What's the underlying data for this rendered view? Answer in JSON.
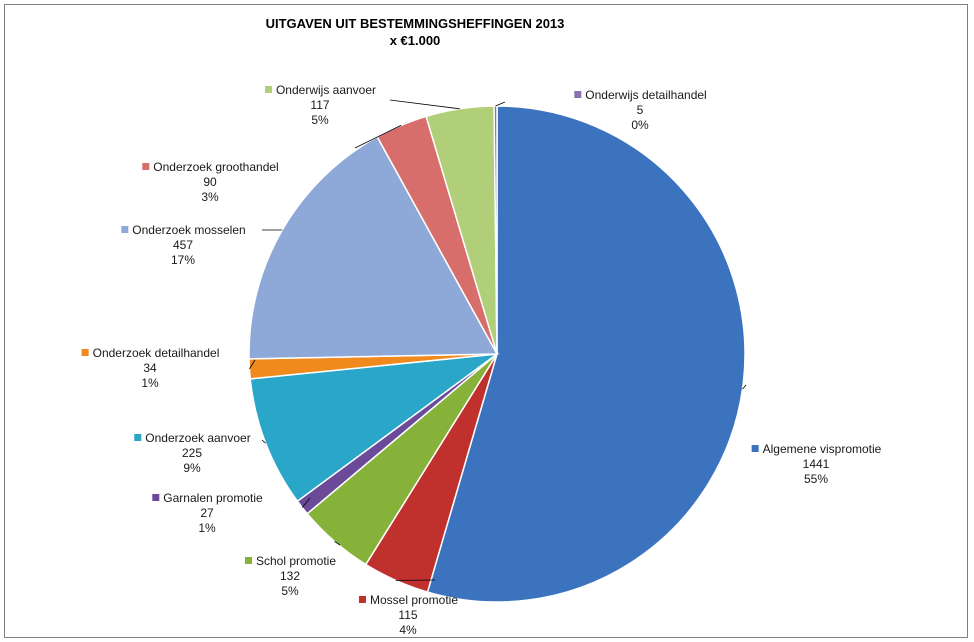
{
  "chart_data": {
    "type": "pie",
    "title": "UITGAVEN UIT BESTEMMINGSHEFFINGEN 2013",
    "subtitle": "x €1.000",
    "slices": [
      {
        "name": "Algemene vispromotie",
        "value": 1441,
        "percent": "55%",
        "color": "#3c73bf"
      },
      {
        "name": "Mossel promotie",
        "value": 115,
        "percent": "4%",
        "color": "#c0312d"
      },
      {
        "name": "Schol promotie",
        "value": 132,
        "percent": "5%",
        "color": "#86b23a"
      },
      {
        "name": "Garnalen promotie",
        "value": 27,
        "percent": "1%",
        "color": "#6b4a9a"
      },
      {
        "name": "Onderzoek aanvoer",
        "value": 225,
        "percent": "9%",
        "color": "#2aa6c8"
      },
      {
        "name": "Onderzoek detailhandel",
        "value": 34,
        "percent": "1%",
        "color": "#f08a1e"
      },
      {
        "name": "Onderzoek mosselen",
        "value": 457,
        "percent": "17%",
        "color": "#8ea8d8"
      },
      {
        "name": "Onderzoek groothandel",
        "value": 90,
        "percent": "3%",
        "color": "#d86e6b"
      },
      {
        "name": "Onderwijs aanvoer",
        "value": 117,
        "percent": "5%",
        "color": "#b0cf78"
      },
      {
        "name": "Onderwijs detailhandel",
        "value": 5,
        "percent": "0%",
        "color": "#8a72b0"
      }
    ]
  }
}
